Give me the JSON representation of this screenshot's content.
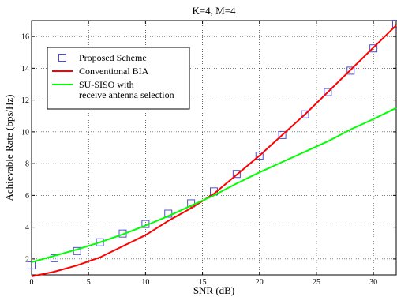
{
  "chart_data": {
    "type": "line",
    "title": "K=4, M=4",
    "xlabel": "SNR (dB)",
    "ylabel": "Achievable Rate (bps/Hz)",
    "xlim": [
      0,
      32
    ],
    "ylim": [
      1,
      17
    ],
    "xticks": [
      0,
      5,
      10,
      15,
      20,
      25,
      30
    ],
    "yticks": [
      2,
      4,
      6,
      8,
      10,
      12,
      14,
      16
    ],
    "grid": true,
    "legend_position": "upper-left",
    "series": [
      {
        "name": "Proposed Scheme",
        "style": "markers",
        "marker": "square",
        "color": "#4d4dd0",
        "x": [
          0,
          2,
          4,
          6,
          8,
          10,
          12,
          14,
          16,
          18,
          20,
          22,
          24,
          26,
          28,
          30,
          32
        ],
        "y": [
          1.6,
          2.05,
          2.5,
          3.05,
          3.6,
          4.2,
          4.85,
          5.5,
          6.25,
          7.35,
          8.5,
          9.8,
          11.1,
          12.5,
          13.85,
          15.25,
          16.8
        ]
      },
      {
        "name": "Conventional BIA",
        "style": "line",
        "color": "#ff0000",
        "x": [
          0,
          2,
          4,
          6,
          8,
          10,
          12,
          14,
          16,
          18,
          20,
          22,
          24,
          26,
          28,
          30,
          32
        ],
        "y": [
          0.9,
          1.2,
          1.6,
          2.1,
          2.8,
          3.5,
          4.4,
          5.2,
          6.1,
          7.3,
          8.5,
          9.8,
          11.1,
          12.5,
          13.9,
          15.3,
          16.7
        ]
      },
      {
        "name": "SU-SISO with\nreceive antenna selection",
        "style": "line",
        "color": "#00ff00",
        "x": [
          0,
          2,
          4,
          6,
          8,
          10,
          12,
          14,
          16,
          18,
          20,
          22,
          24,
          26,
          28,
          30,
          32
        ],
        "y": [
          1.8,
          2.2,
          2.6,
          3.05,
          3.55,
          4.1,
          4.7,
          5.35,
          6.0,
          6.75,
          7.45,
          8.1,
          8.75,
          9.4,
          10.15,
          10.8,
          11.5
        ]
      }
    ]
  }
}
